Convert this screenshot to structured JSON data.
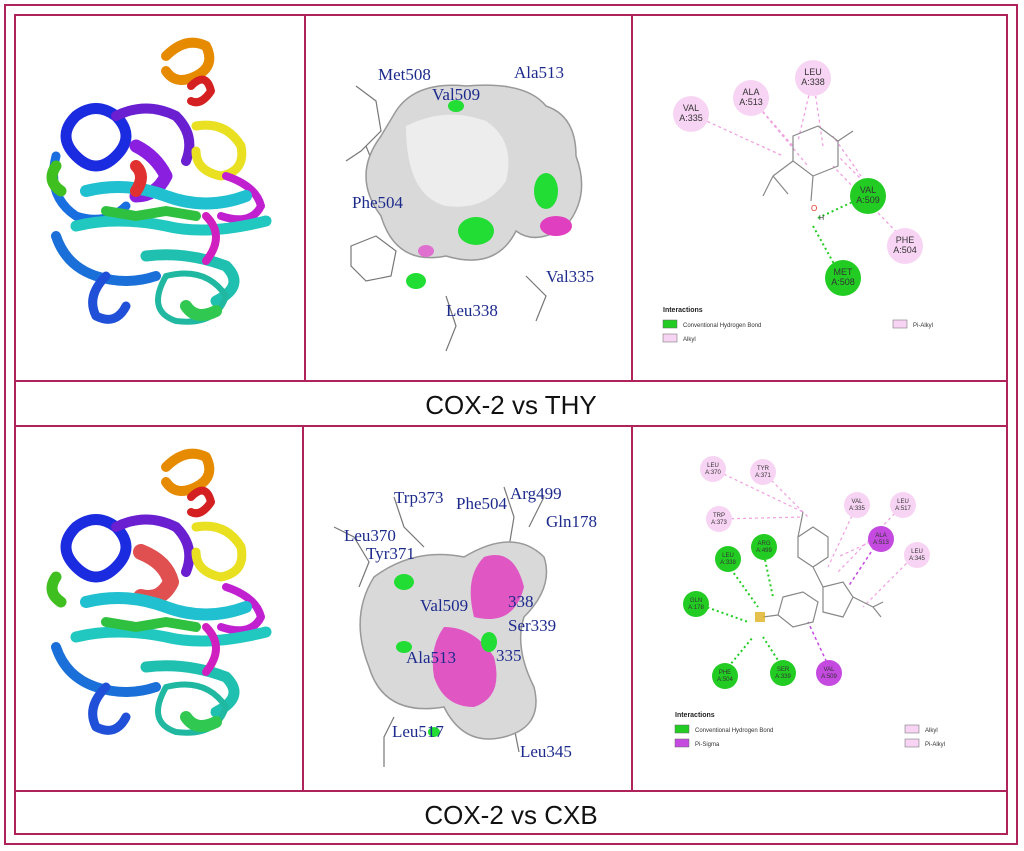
{
  "colors": {
    "frame": "#b0235a",
    "hbond": "#22cc22",
    "alkyl": "#f5c0f0",
    "pi_sigma": "#c44ae0",
    "label3d": "#1c2a8c"
  },
  "rows": [
    {
      "caption": "COX-2 vs THY",
      "pocket_labels": [
        "Met508",
        "Val509",
        "Ala513",
        "Phe504",
        "Val335",
        "Leu338"
      ],
      "residues": [
        {
          "name": "VAL",
          "id": "A:335",
          "type": "alkyl"
        },
        {
          "name": "ALA",
          "id": "A:513",
          "type": "alkyl"
        },
        {
          "name": "LEU",
          "id": "A:338",
          "type": "alkyl"
        },
        {
          "name": "VAL",
          "id": "A:509",
          "type": "hbond"
        },
        {
          "name": "PHE",
          "id": "A:504",
          "type": "alkyl"
        },
        {
          "name": "MET",
          "id": "A:508",
          "type": "hbond"
        }
      ],
      "legend": {
        "title": "Interactions",
        "items": [
          "Conventional Hydrogen Bond",
          "Pi-Alkyl",
          "Alkyl"
        ]
      }
    },
    {
      "caption": "COX-2 vs CXB",
      "pocket_labels": [
        "Trp373",
        "Phe504",
        "Arg499",
        "Gln178",
        "Leu370",
        "Tyr371",
        "Val509",
        "338",
        "Ser339",
        "Ala513",
        "335",
        "Leu517",
        "Leu345"
      ],
      "residues": [
        {
          "name": "LEU",
          "id": "A:370",
          "type": "alkyl"
        },
        {
          "name": "TYR",
          "id": "A:371",
          "type": "alkyl"
        },
        {
          "name": "TRP",
          "id": "A:373",
          "type": "alkyl"
        },
        {
          "name": "VAL",
          "id": "A:335",
          "type": "alkyl"
        },
        {
          "name": "LEU",
          "id": "A:517",
          "type": "alkyl"
        },
        {
          "name": "ALA",
          "id": "A:513",
          "type": "pi_sigma"
        },
        {
          "name": "LEU",
          "id": "A:345",
          "type": "alkyl"
        },
        {
          "name": "ARG",
          "id": "A:499",
          "type": "hbond"
        },
        {
          "name": "LEU",
          "id": "A:338",
          "type": "hbond"
        },
        {
          "name": "GLN",
          "id": "A:178",
          "type": "hbond"
        },
        {
          "name": "PHE",
          "id": "A:504",
          "type": "hbond"
        },
        {
          "name": "SER",
          "id": "A:339",
          "type": "hbond"
        },
        {
          "name": "VAL",
          "id": "A:509",
          "type": "pi_sigma"
        }
      ],
      "legend": {
        "title": "Interactions",
        "items": [
          "Conventional Hydrogen Bond",
          "Pi-Sigma",
          "Alkyl",
          "Pi-Alkyl"
        ]
      }
    }
  ]
}
